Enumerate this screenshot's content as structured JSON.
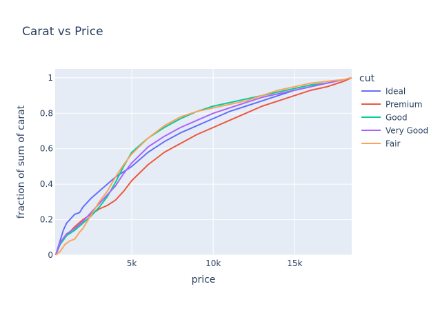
{
  "chart_data": {
    "type": "line",
    "title": "Carat vs Price",
    "xlabel": "price",
    "ylabel": "fraction of sum of carat",
    "xlim": [
      300,
      18500
    ],
    "ylim": [
      0,
      1.05
    ],
    "x_ticks": [
      5000,
      10000,
      15000
    ],
    "x_tick_labels": [
      "5k",
      "10k",
      "15k"
    ],
    "y_ticks": [
      0,
      0.2,
      0.4,
      0.6,
      0.8,
      1
    ],
    "y_tick_labels": [
      "0",
      "0.2",
      "0.4",
      "0.6",
      "0.8",
      "1"
    ],
    "grid": true,
    "legend": {
      "title": "cut",
      "placement": "right"
    },
    "series": [
      {
        "name": "Ideal",
        "color": "#636efa",
        "x": [
          330,
          600,
          800,
          1000,
          1200,
          1500,
          1800,
          2000,
          2500,
          3000,
          3500,
          4000,
          4500,
          5000,
          6000,
          7000,
          8000,
          9000,
          10000,
          11000,
          12000,
          13000,
          14000,
          15000,
          16000,
          17000,
          18000,
          18500
        ],
        "y": [
          0,
          0.08,
          0.14,
          0.18,
          0.2,
          0.23,
          0.24,
          0.27,
          0.32,
          0.36,
          0.4,
          0.44,
          0.47,
          0.5,
          0.58,
          0.64,
          0.69,
          0.73,
          0.77,
          0.81,
          0.84,
          0.87,
          0.9,
          0.93,
          0.95,
          0.97,
          0.99,
          1.0
        ]
      },
      {
        "name": "Premium",
        "color": "#ef553b",
        "x": [
          330,
          600,
          1000,
          1500,
          2000,
          2500,
          3000,
          3500,
          4000,
          4500,
          5000,
          6000,
          7000,
          8000,
          9000,
          10000,
          11000,
          12000,
          13000,
          14000,
          15000,
          16000,
          17000,
          18000,
          18500
        ],
        "y": [
          0,
          0.06,
          0.11,
          0.16,
          0.2,
          0.23,
          0.26,
          0.28,
          0.31,
          0.36,
          0.42,
          0.51,
          0.58,
          0.63,
          0.68,
          0.72,
          0.76,
          0.8,
          0.84,
          0.87,
          0.9,
          0.93,
          0.95,
          0.98,
          1.0
        ]
      },
      {
        "name": "Good",
        "color": "#00cc96",
        "x": [
          330,
          600,
          1000,
          1500,
          2000,
          2500,
          3000,
          3500,
          4000,
          4500,
          5000,
          6000,
          7000,
          8000,
          9000,
          10000,
          11000,
          12000,
          13000,
          14000,
          15000,
          16000,
          17000,
          18000,
          18500
        ],
        "y": [
          0,
          0.06,
          0.11,
          0.14,
          0.18,
          0.22,
          0.27,
          0.33,
          0.41,
          0.5,
          0.58,
          0.66,
          0.72,
          0.77,
          0.81,
          0.84,
          0.86,
          0.88,
          0.9,
          0.92,
          0.94,
          0.96,
          0.97,
          0.99,
          1.0
        ]
      },
      {
        "name": "Very Good",
        "color": "#ab63fa",
        "x": [
          330,
          600,
          1000,
          1500,
          2000,
          2500,
          3000,
          3500,
          4000,
          4500,
          5000,
          6000,
          7000,
          8000,
          9000,
          10000,
          11000,
          12000,
          13000,
          14000,
          15000,
          16000,
          17000,
          18000,
          18500
        ],
        "y": [
          0,
          0.07,
          0.12,
          0.15,
          0.19,
          0.24,
          0.29,
          0.34,
          0.39,
          0.46,
          0.52,
          0.61,
          0.67,
          0.72,
          0.76,
          0.8,
          0.83,
          0.86,
          0.89,
          0.91,
          0.93,
          0.95,
          0.97,
          0.99,
          1.0
        ]
      },
      {
        "name": "Fair",
        "color": "#ffa15a",
        "x": [
          330,
          600,
          900,
          1200,
          1500,
          1800,
          2000,
          2400,
          3000,
          3500,
          4000,
          4500,
          5000,
          6000,
          7000,
          8000,
          9000,
          10000,
          11000,
          12000,
          13000,
          14000,
          15000,
          16000,
          17000,
          18000,
          18500
        ],
        "y": [
          0,
          0.02,
          0.06,
          0.08,
          0.09,
          0.13,
          0.15,
          0.21,
          0.3,
          0.36,
          0.44,
          0.51,
          0.57,
          0.66,
          0.73,
          0.78,
          0.81,
          0.83,
          0.85,
          0.87,
          0.9,
          0.93,
          0.95,
          0.97,
          0.98,
          0.99,
          1.0
        ]
      }
    ]
  }
}
